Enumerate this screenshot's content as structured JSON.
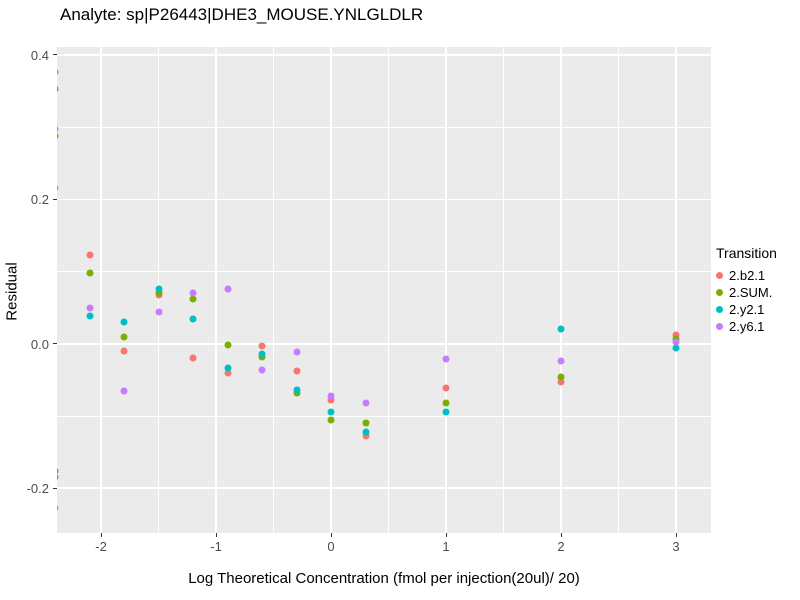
{
  "title": "Analyte: sp|P26443|DHE3_MOUSE.YNLGLDLR",
  "chart_data": {
    "type": "scatter",
    "title": "Analyte: sp|P26443|DHE3_MOUSE.YNLGLDLR",
    "xlabel": "Log Theoretical Concentration (fmol per injection(20ul)/ 20)",
    "ylabel": "Residual",
    "xlim": [
      -2.383,
      3.304
    ],
    "ylim": [
      -0.262,
      0.411
    ],
    "x_ticks": [
      -2,
      -1,
      0,
      1,
      2,
      3
    ],
    "x_tick_labels": [
      "-2",
      "-1",
      "0",
      "1",
      "2",
      "3"
    ],
    "x_minor_ticks": [
      -1.5,
      -0.5,
      0.5,
      1.5,
      2.5
    ],
    "y_ticks": [
      0.4,
      0.2,
      0.0,
      -0.2
    ],
    "y_tick_labels": [
      "0.4",
      "0.2",
      "0.0",
      "-0.2"
    ],
    "y_minor_ticks": [
      0.3,
      0.1,
      -0.1
    ],
    "grid": "white major and minor on grey panel",
    "panel_color": "#EBEBEB",
    "legend_title": "Transition",
    "legend_position": "right",
    "series": [
      {
        "name": "2.b2.1",
        "color": "#F8766D",
        "points": [
          [
            -2.4,
            0.376
          ],
          [
            -2.1,
            0.123
          ],
          [
            -1.8,
            -0.01
          ],
          [
            -1.5,
            0.068
          ],
          [
            -1.2,
            -0.019
          ],
          [
            -0.9,
            -0.04
          ],
          [
            -0.6,
            -0.003
          ],
          [
            -0.3,
            -0.037
          ],
          [
            0.0,
            -0.078
          ],
          [
            0.3,
            -0.127
          ],
          [
            1.0,
            -0.061
          ],
          [
            2.0,
            -0.053
          ],
          [
            3.0,
            0.012
          ]
        ]
      },
      {
        "name": "2.SUM.",
        "color": "#7CAE00",
        "points": [
          [
            -2.4,
            0.288
          ],
          [
            -2.4,
            -0.184
          ],
          [
            -2.1,
            0.098
          ],
          [
            -1.8,
            0.01
          ],
          [
            -1.5,
            0.071
          ],
          [
            -1.2,
            0.062
          ],
          [
            -0.9,
            -0.001
          ],
          [
            -0.6,
            -0.018
          ],
          [
            -0.3,
            -0.068
          ],
          [
            0.0,
            -0.105
          ],
          [
            0.3,
            -0.109
          ],
          [
            1.0,
            -0.082
          ],
          [
            2.0,
            -0.046
          ],
          [
            3.0,
            0.007
          ]
        ]
      },
      {
        "name": "2.y2.1",
        "color": "#00BFC4",
        "points": [
          [
            -2.4,
            0.353
          ],
          [
            -2.4,
            -0.176
          ],
          [
            -2.1,
            0.039
          ],
          [
            -1.8,
            0.03
          ],
          [
            -1.5,
            0.076
          ],
          [
            -1.2,
            0.035
          ],
          [
            -0.9,
            -0.033
          ],
          [
            -0.6,
            -0.014
          ],
          [
            -0.3,
            -0.064
          ],
          [
            0.0,
            -0.094
          ],
          [
            0.3,
            -0.122
          ],
          [
            1.0,
            -0.094
          ],
          [
            2.0,
            0.021
          ],
          [
            3.0,
            -0.006
          ]
        ]
      },
      {
        "name": "2.y6.1",
        "color": "#C77CFF",
        "points": [
          [
            -2.4,
            0.298
          ],
          [
            -2.4,
            0.216
          ],
          [
            -2.4,
            -0.228
          ],
          [
            -2.1,
            0.05
          ],
          [
            -1.8,
            -0.066
          ],
          [
            -1.5,
            0.044
          ],
          [
            -1.2,
            0.071
          ],
          [
            -0.9,
            0.076
          ],
          [
            -0.6,
            -0.036
          ],
          [
            -0.3,
            -0.011
          ],
          [
            0.0,
            -0.072
          ],
          [
            0.3,
            -0.082
          ],
          [
            1.0,
            -0.021
          ],
          [
            2.0,
            -0.024
          ],
          [
            3.0,
            0.003
          ]
        ]
      }
    ]
  }
}
